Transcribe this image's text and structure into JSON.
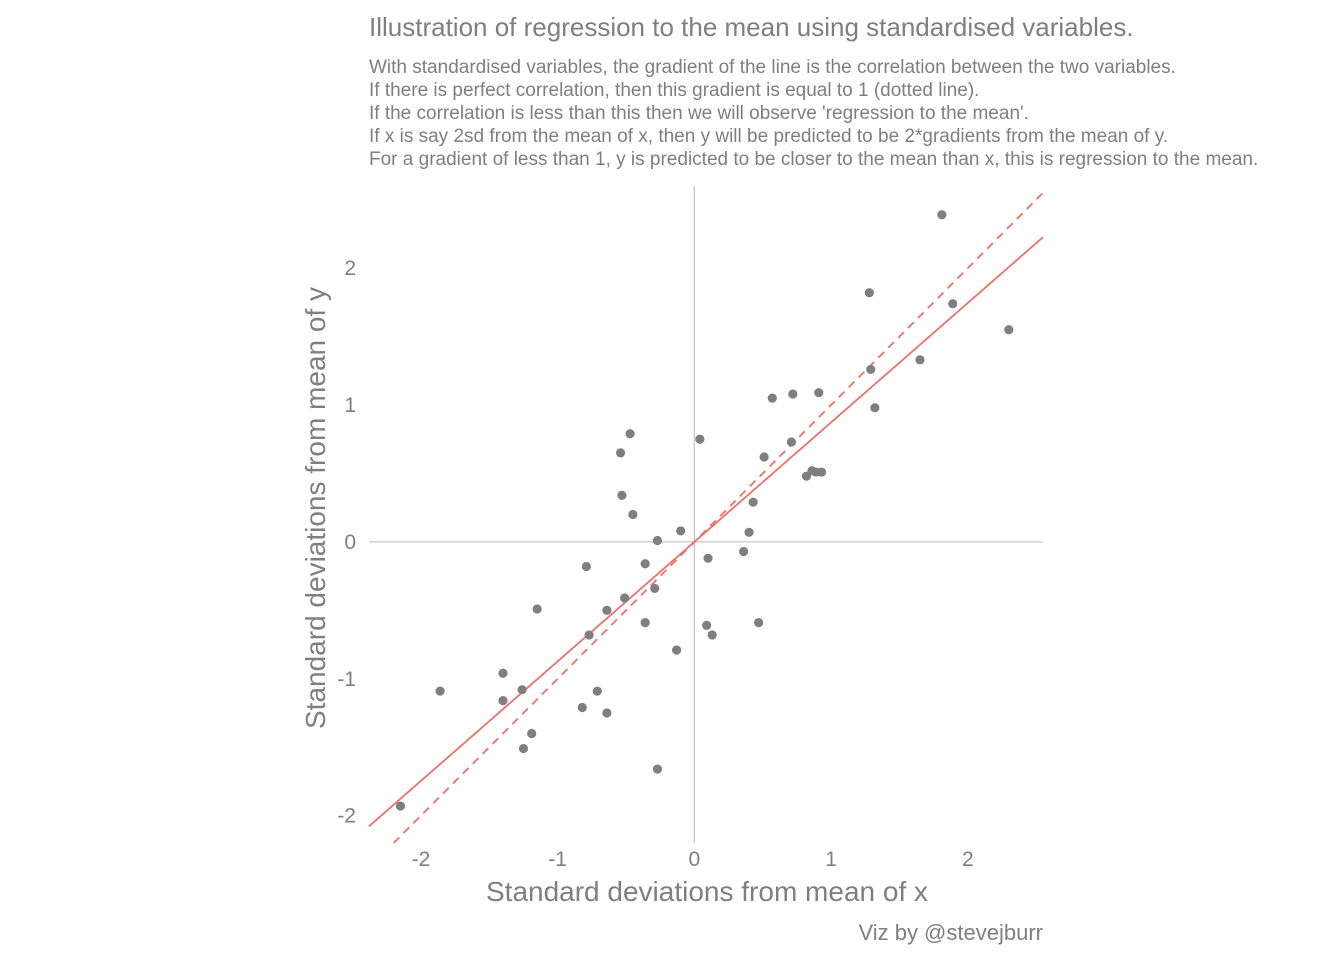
{
  "chart_data": {
    "type": "scatter",
    "title": "Illustration of regression to the mean using standardised variables.",
    "subtitle_lines": [
      "With standardised variables, the gradient of the line is the correlation between the two variables.",
      "If there is perfect correlation, then this gradient is equal to 1 (dotted line).",
      "If the correlation is less than this then we will observe 'regression to the mean'.",
      "If x is say 2sd from the mean of x, then y will be predicted to be 2*gradients from the mean of y.",
      "For a gradient of less than 1, y is predicted to be closer to the mean than x, this is regression to the mean."
    ],
    "xlabel": "Standard deviations from mean of x",
    "ylabel": "Standard deviations from mean of y",
    "caption": "Viz by @stevejburr",
    "xlim": [
      -2.38,
      2.55
    ],
    "ylim": [
      -2.2,
      2.6
    ],
    "x_ticks": [
      -2,
      -1,
      0,
      1,
      2
    ],
    "x_tick_labels": [
      "-2",
      "-1",
      "0",
      "1",
      "2"
    ],
    "y_ticks": [
      -2,
      -1,
      0,
      1,
      2
    ],
    "y_tick_labels": [
      "-2",
      "-1",
      "0",
      "1",
      "2"
    ],
    "grid": false,
    "reference_lines": [
      "x=0",
      "y=0"
    ],
    "point_color": "#7f7f7f",
    "line_color": "#f07068",
    "reference_color": "#c8c8c8",
    "regression_line": {
      "slope": 0.873,
      "intercept": 0.0,
      "style": "solid"
    },
    "identity_line": {
      "slope": 1.0,
      "intercept": 0.0,
      "style": "dashed"
    },
    "points": [
      {
        "x": -2.15,
        "y": -1.93
      },
      {
        "x": -1.86,
        "y": -1.09
      },
      {
        "x": -1.4,
        "y": -0.96
      },
      {
        "x": -1.4,
        "y": -1.16
      },
      {
        "x": -1.26,
        "y": -1.08
      },
      {
        "x": -1.25,
        "y": -1.51
      },
      {
        "x": -1.19,
        "y": -1.4
      },
      {
        "x": -1.15,
        "y": -0.49
      },
      {
        "x": -0.82,
        "y": -1.21
      },
      {
        "x": -0.79,
        "y": -0.18
      },
      {
        "x": -0.77,
        "y": -0.68
      },
      {
        "x": -0.71,
        "y": -1.09
      },
      {
        "x": -0.64,
        "y": -0.5
      },
      {
        "x": -0.64,
        "y": -1.25
      },
      {
        "x": -0.54,
        "y": 0.65
      },
      {
        "x": -0.53,
        "y": 0.34
      },
      {
        "x": -0.51,
        "y": -0.41
      },
      {
        "x": -0.47,
        "y": 0.79
      },
      {
        "x": -0.45,
        "y": 0.2
      },
      {
        "x": -0.36,
        "y": -0.16
      },
      {
        "x": -0.36,
        "y": -0.59
      },
      {
        "x": -0.29,
        "y": -0.34
      },
      {
        "x": -0.27,
        "y": 0.01
      },
      {
        "x": -0.27,
        "y": -1.66
      },
      {
        "x": -0.13,
        "y": -0.79
      },
      {
        "x": -0.1,
        "y": 0.08
      },
      {
        "x": 0.04,
        "y": 0.75
      },
      {
        "x": 0.09,
        "y": -0.61
      },
      {
        "x": 0.1,
        "y": -0.12
      },
      {
        "x": 0.13,
        "y": -0.68
      },
      {
        "x": 0.36,
        "y": -0.07
      },
      {
        "x": 0.4,
        "y": 0.07
      },
      {
        "x": 0.43,
        "y": 0.29
      },
      {
        "x": 0.47,
        "y": -0.59
      },
      {
        "x": 0.51,
        "y": 0.62
      },
      {
        "x": 0.57,
        "y": 1.05
      },
      {
        "x": 0.71,
        "y": 0.73
      },
      {
        "x": 0.72,
        "y": 1.08
      },
      {
        "x": 0.82,
        "y": 0.48
      },
      {
        "x": 0.86,
        "y": 0.52
      },
      {
        "x": 0.89,
        "y": 0.51
      },
      {
        "x": 0.91,
        "y": 1.09
      },
      {
        "x": 0.93,
        "y": 0.51
      },
      {
        "x": 1.28,
        "y": 1.82
      },
      {
        "x": 1.29,
        "y": 1.26
      },
      {
        "x": 1.32,
        "y": 0.98
      },
      {
        "x": 1.65,
        "y": 1.33
      },
      {
        "x": 1.81,
        "y": 2.39
      },
      {
        "x": 1.89,
        "y": 1.74
      },
      {
        "x": 2.3,
        "y": 1.55
      }
    ]
  }
}
